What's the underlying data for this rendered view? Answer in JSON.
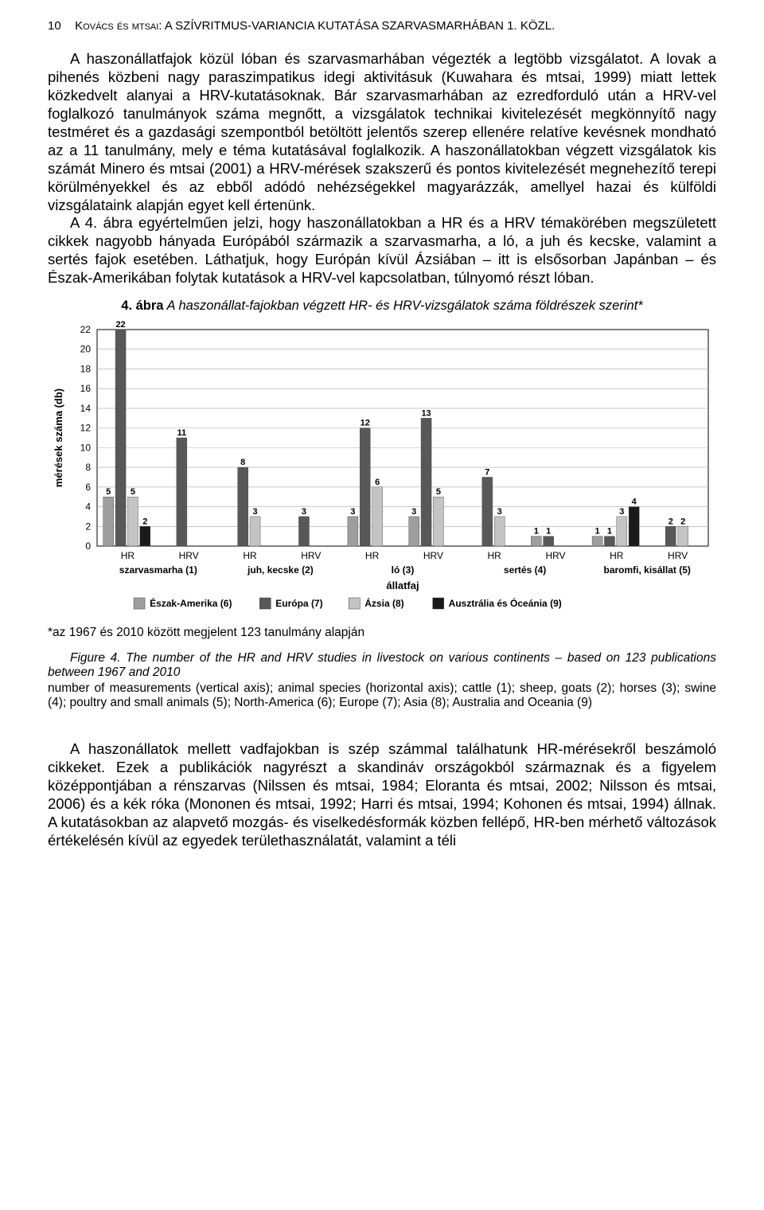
{
  "header": {
    "page_number": "10",
    "running_title": "Kovács és mtsai: A SZÍVRITMUS-VARIANCIA KUTATÁSA SZARVASMARHÁBAN 1. KÖZL."
  },
  "body": {
    "p1": "A haszonállatfajok közül lóban és szarvasmarhában végezték a legtöbb vizsgálatot. A lovak a pihenés közbeni nagy paraszimpatikus idegi aktivitásuk (Kuwahara és mtsai, 1999) miatt lettek közkedvelt alanyai a HRV-kutatásoknak. Bár szarvasmarhában az ezredforduló után a HRV-vel foglalkozó tanulmányok száma megnőtt, a vizsgálatok technikai kivitelezését megkönnyítő nagy testméret és a gazdasági szempontból betöltött jelentős szerep ellenére relatíve kevésnek mondható az a 11 tanulmány, mely e téma kutatásával foglalkozik. A haszonállatokban végzett vizsgálatok kis számát Minero és mtsai (2001) a HRV-mérések szakszerű és pontos kivitelezését megnehezítő terepi körülményekkel és az ebből adódó nehézségekkel magyarázzák, amellyel hazai és külföldi vizsgálataink alapján egyet kell értenünk.",
    "p2": "A 4. ábra egyértelműen jelzi, hogy haszonállatokban a HR és a HRV témakörében megszületett cikkek nagyobb hányada Európából származik a szarvasmarha, a ló, a juh és kecske, valamint a sertés fajok esetében. Láthatjuk, hogy Európán kívül Ázsiában – itt is elsősorban Japánban – és Észak-Amerikában folytak kutatások a HRV-vel kapcsolatban, túlnyomó részt lóban.",
    "p3": "A haszonállatok mellett vadfajokban is szép számmal találhatunk HR-mérésekről beszámoló cikkeket. Ezek a publikációk nagyrészt a skandináv országokból származnak és a figyelem középpontjában a rénszarvas (Nilssen és mtsai, 1984; Eloranta és mtsai, 2002; Nilsson és mtsai, 2006) és a kék róka (Mononen és mtsai, 1992; Harri és mtsai, 1994; Kohonen és mtsai, 1994) állnak. A kutatásokban az alapvető mozgás- és viselkedésformák közben fellépő, HR-ben mérhető változások értékelésén kívül az egyedek területhasználatát, valamint a téli"
  },
  "figure4": {
    "caption_top_label": "4. ábra",
    "caption_top_text": "A haszonállat-fajokban végzett HR- és HRV-vizsgálatok száma földrészek szerint*",
    "footnote_under": "*az 1967 és 2010 között megjelent 123 tanulmány alapján",
    "caption_bottom_label": "Figure 4.",
    "caption_bottom_text": "The number of the HR and HRV studies in livestock on various continents – based on 123 publications between 1967 and 2010",
    "legend_text": "number of measurements (vertical axis); animal species (horizontal axis); cattle (1); sheep, goats (2); horses (3); swine (4); poultry and small animals (5); North-America (6); Europe (7); Asia (8); Australia and Oceania (9)"
  },
  "chart": {
    "type": "grouped-bar",
    "background_color": "#ffffff",
    "plot_background": "#ffffff",
    "grid_color": "#a8a8a8",
    "axis_color": "#000000",
    "border_width": 1,
    "ylim": [
      0,
      22
    ],
    "ytick_step": 2,
    "yticks": [
      0,
      2,
      4,
      6,
      8,
      10,
      12,
      14,
      16,
      18,
      20,
      22
    ],
    "y_axis_label": "mérések száma (db)",
    "x_axis_label": "állatfaj",
    "label_fontsize": 13,
    "tick_fontsize": 12,
    "value_label_fontsize": 11,
    "value_label_weight": "bold",
    "bar_width": 0.85,
    "series": [
      {
        "name": "Észak-Amerika (6)",
        "color": "#9e9e9e"
      },
      {
        "name": "Európa (7)",
        "color": "#585858"
      },
      {
        "name": "Ázsia (8)",
        "color": "#c4c4c4"
      },
      {
        "name": "Ausztrália és Óceánia (9)",
        "color": "#1a1a1a"
      }
    ],
    "group_labels_top": [
      "HR",
      "HRV",
      "HR",
      "HRV",
      "HR",
      "HRV",
      "HR",
      "HRV",
      "HR",
      "HRV"
    ],
    "group_labels_bottom": [
      "szarvasmarha (1)",
      "juh, kecske (2)",
      "ló (3)",
      "sertés (4)",
      "baromfi, kisállat (5)"
    ],
    "data": [
      [
        5,
        22,
        5,
        2
      ],
      [
        0,
        11,
        0,
        0
      ],
      [
        0,
        8,
        3,
        0
      ],
      [
        0,
        3,
        0,
        0
      ],
      [
        3,
        12,
        6,
        0
      ],
      [
        3,
        13,
        5,
        0
      ],
      [
        0,
        7,
        3,
        0
      ],
      [
        1,
        1,
        0,
        0
      ],
      [
        1,
        1,
        3,
        4
      ],
      [
        0,
        2,
        2,
        0
      ]
    ]
  }
}
